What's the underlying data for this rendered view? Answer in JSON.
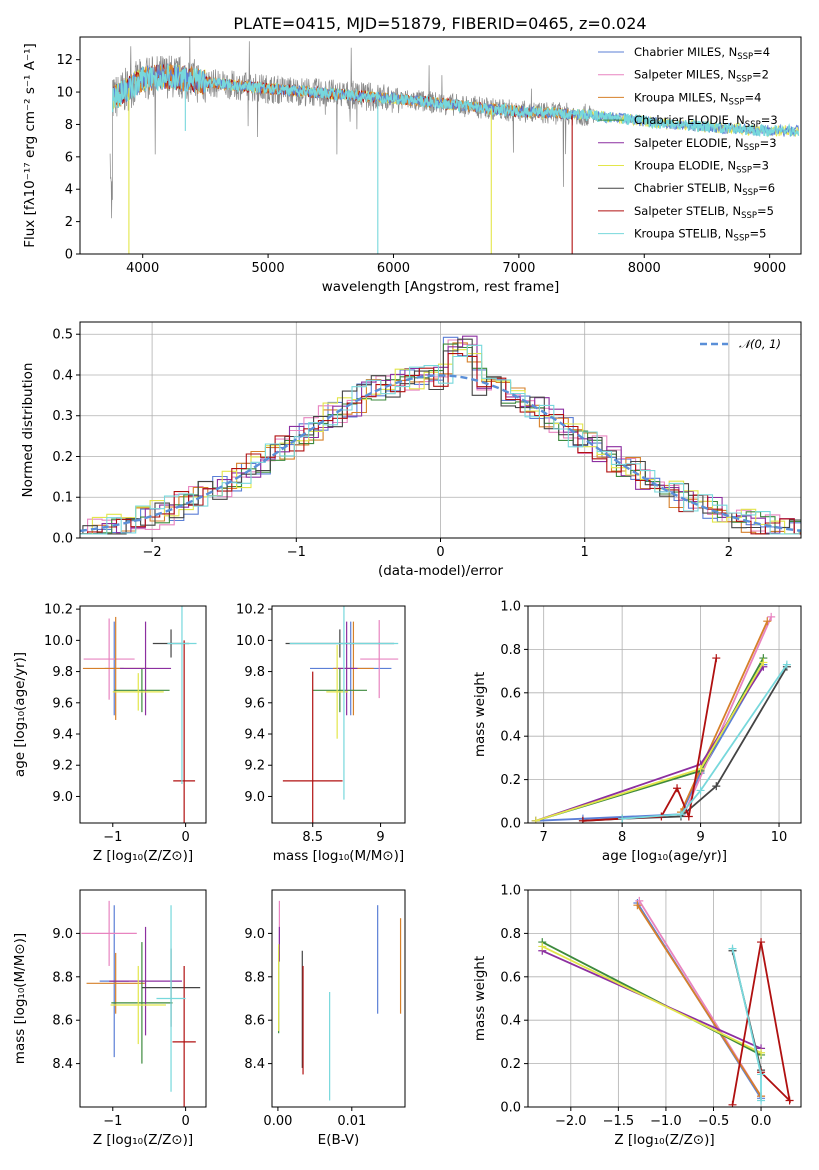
{
  "figure": {
    "title": "PLATE=0415, MJD=51879, FIBERID=0465, z=0.024"
  },
  "colors": {
    "Chabrier MILES": "#5b7fd6",
    "Salpeter MILES": "#e884c0",
    "Kroupa MILES": "#d6802a",
    "Chabrier ELODIE": "#3d8a3d",
    "Salpeter ELODIE": "#8c2fa0",
    "Kroupa ELODIE": "#e3e64a",
    "Chabrier STELIB": "#444444",
    "Salpeter STELIB": "#b01010",
    "Kroupa STELIB": "#77d8dc",
    "data": "#888888",
    "normal": "#5a8fd8"
  },
  "chart_data": [
    {
      "id": "spectrum",
      "type": "line",
      "xlabel": "wavelength [Angstrom, rest frame]",
      "ylabel": "Flux [fλ10⁻¹⁷ erg cm⁻² s⁻¹ A⁻¹]",
      "xlim": [
        3500,
        9250
      ],
      "ylim": [
        0,
        13.4
      ],
      "xticks": [
        4000,
        5000,
        6000,
        7000,
        8000,
        9000
      ],
      "yticks": [
        0,
        2,
        4,
        6,
        8,
        10,
        12
      ],
      "legend_position": "top-right",
      "legend": [
        {
          "name": "Chabrier MILES",
          "nssp": "4"
        },
        {
          "name": "Salpeter MILES",
          "nssp": "2"
        },
        {
          "name": "Kroupa MILES",
          "nssp": "4"
        },
        {
          "name": "Chabrier ELODIE",
          "nssp": "3"
        },
        {
          "name": "Salpeter ELODIE",
          "nssp": "3"
        },
        {
          "name": "Kroupa ELODIE",
          "nssp": "3"
        },
        {
          "name": "Chabrier STELIB",
          "nssp": "6"
        },
        {
          "name": "Salpeter STELIB",
          "nssp": "5"
        },
        {
          "name": "Kroupa STELIB",
          "nssp": "5"
        }
      ],
      "continuum": [
        [
          3750,
          9.5
        ],
        [
          3900,
          10.3
        ],
        [
          4000,
          10.8
        ],
        [
          4200,
          11.0
        ],
        [
          4500,
          10.6
        ],
        [
          5000,
          10.2
        ],
        [
          5500,
          9.9
        ],
        [
          6000,
          9.6
        ],
        [
          6500,
          9.2
        ],
        [
          7000,
          8.8
        ],
        [
          7500,
          8.6
        ],
        [
          7900,
          8.3
        ],
        [
          8200,
          8.0
        ],
        [
          8600,
          7.8
        ],
        [
          9000,
          7.6
        ],
        [
          9200,
          7.6
        ]
      ]
    },
    {
      "id": "residuals",
      "type": "line",
      "xlabel": "(data-model)/error",
      "ylabel": "Normed distribution",
      "xlim": [
        -2.5,
        2.5
      ],
      "ylim": [
        0,
        0.53
      ],
      "xticks": [
        -2,
        -1,
        0,
        1,
        2
      ],
      "yticks": [
        0.0,
        0.1,
        0.2,
        0.3,
        0.4,
        0.5
      ],
      "legend": "𝒩(0, 1)",
      "grid": true
    },
    {
      "id": "age_vs_Z",
      "type": "scatter",
      "xlabel": "Z [log₁₀(Z/Z⊙)]",
      "ylabel": "age  [log₁₀(age/yr)]",
      "xlim": [
        -1.45,
        0.28
      ],
      "ylim": [
        8.83,
        10.22
      ],
      "xticks": [
        -1,
        0
      ],
      "yticks": [
        9.0,
        9.2,
        9.4,
        9.6,
        9.8,
        10.0,
        10.2
      ],
      "points": [
        {
          "model": "Chabrier MILES",
          "x": -0.98,
          "y": 9.82,
          "xerr": 0.13,
          "yerr": 0.3
        },
        {
          "model": "Salpeter MILES",
          "x": -1.05,
          "y": 9.88,
          "xerr": 0.35,
          "yerr": 0.26
        },
        {
          "model": "Kroupa MILES",
          "x": -0.96,
          "y": 9.82,
          "xerr": 0.45,
          "yerr": 0.33
        },
        {
          "model": "Chabrier ELODIE",
          "x": -0.6,
          "y": 9.68,
          "xerr": 0.38,
          "yerr": 0.14
        },
        {
          "model": "Salpeter ELODIE",
          "x": -0.55,
          "y": 9.82,
          "xerr": 0.35,
          "yerr": 0.3
        },
        {
          "model": "Kroupa ELODIE",
          "x": -0.65,
          "y": 9.67,
          "xerr": 0.35,
          "yerr": 0.12
        },
        {
          "model": "Chabrier STELIB",
          "x": -0.2,
          "y": 9.98,
          "xerr": 0.25,
          "yerr": 0.09
        },
        {
          "model": "Salpeter STELIB",
          "x": -0.02,
          "y": 9.1,
          "xerr": 0.15,
          "yerr": 0.9
        },
        {
          "model": "Kroupa STELIB",
          "x": -0.05,
          "y": 9.98,
          "xerr": 0.2,
          "yerr": 0.9
        }
      ]
    },
    {
      "id": "age_vs_mass",
      "type": "scatter",
      "xlabel": "mass [log₁₀(M/M⊙)]",
      "ylabel": "",
      "xlim": [
        8.2,
        9.18
      ],
      "ylim": [
        8.83,
        10.22
      ],
      "xticks": [
        8.5,
        9.0
      ],
      "yticks": [
        9.0,
        9.2,
        9.4,
        9.6,
        9.8,
        10.0,
        10.2
      ],
      "points": [
        {
          "model": "Chabrier MILES",
          "x": 8.78,
          "y": 9.82,
          "xerr": 0.3,
          "yerr": 0.3
        },
        {
          "model": "Salpeter MILES",
          "x": 8.99,
          "y": 9.88,
          "xerr": 0.14,
          "yerr": 0.25
        },
        {
          "model": "Kroupa MILES",
          "x": 8.8,
          "y": 9.82,
          "xerr": 0.15,
          "yerr": 0.3
        },
        {
          "model": "Chabrier ELODIE",
          "x": 8.7,
          "y": 9.68,
          "xerr": 0.2,
          "yerr": 0.14
        },
        {
          "model": "Salpeter ELODIE",
          "x": 8.75,
          "y": 9.82,
          "xerr": 0.08,
          "yerr": 0.3
        },
        {
          "model": "Kroupa ELODIE",
          "x": 8.68,
          "y": 9.67,
          "xerr": 0.08,
          "yerr": 0.3
        },
        {
          "model": "Chabrier STELIB",
          "x": 8.7,
          "y": 9.98,
          "xerr": 0.4,
          "yerr": 0.09
        },
        {
          "model": "Salpeter STELIB",
          "x": 8.5,
          "y": 9.1,
          "xerr": 0.22,
          "yerr": 0.7
        },
        {
          "model": "Kroupa STELIB",
          "x": 8.73,
          "y": 9.98,
          "xerr": 0.4,
          "yerr": 1.0
        }
      ]
    },
    {
      "id": "massweight_vs_age",
      "type": "line",
      "xlabel": "age  [log₁₀(age/yr)]",
      "ylabel": "mass weight",
      "xlim": [
        6.8,
        10.28
      ],
      "ylim": [
        0,
        1.0
      ],
      "xticks": [
        7,
        8,
        9,
        10
      ],
      "yticks": [
        0.0,
        0.2,
        0.4,
        0.6,
        0.8,
        1.0
      ],
      "grid": true,
      "series": [
        {
          "model": "Chabrier MILES",
          "x": [
            6.9,
            7.5,
            8.75,
            9.0,
            9.8
          ],
          "y": [
            0.01,
            0.02,
            0.04,
            0.23,
            0.73
          ]
        },
        {
          "model": "Salpeter MILES",
          "x": [
            8.8,
            9.9
          ],
          "y": [
            0.05,
            0.95
          ]
        },
        {
          "model": "Kroupa MILES",
          "x": [
            8.75,
            9.85
          ],
          "y": [
            0.05,
            0.93
          ]
        },
        {
          "model": "Chabrier ELODIE",
          "x": [
            6.9,
            9.0,
            9.8
          ],
          "y": [
            0.01,
            0.24,
            0.76
          ]
        },
        {
          "model": "Salpeter ELODIE",
          "x": [
            6.9,
            9.0,
            9.8
          ],
          "y": [
            0.01,
            0.27,
            0.72
          ]
        },
        {
          "model": "Kroupa ELODIE",
          "x": [
            6.9,
            9.0,
            9.8
          ],
          "y": [
            0.01,
            0.25,
            0.74
          ]
        },
        {
          "model": "Chabrier STELIB",
          "x": [
            7.5,
            8.0,
            8.75,
            9.2,
            10.1
          ],
          "y": [
            0.01,
            0.02,
            0.03,
            0.17,
            0.72
          ]
        },
        {
          "model": "Salpeter STELIB",
          "x": [
            7.5,
            8.5,
            8.7,
            8.85,
            9.2
          ],
          "y": [
            0.01,
            0.03,
            0.16,
            0.03,
            0.76
          ]
        },
        {
          "model": "Kroupa STELIB",
          "x": [
            8.0,
            8.75,
            9.0,
            10.1
          ],
          "y": [
            0.02,
            0.04,
            0.15,
            0.73
          ]
        }
      ]
    },
    {
      "id": "mass_vs_Z",
      "type": "scatter",
      "xlabel": "Z [log₁₀(Z/Z⊙)]",
      "ylabel": "mass [log₁₀(M/M⊙)]",
      "xlim": [
        -1.45,
        0.28
      ],
      "ylim": [
        8.2,
        9.2
      ],
      "xticks": [
        -1,
        0
      ],
      "yticks": [
        8.4,
        8.6,
        8.8,
        9.0
      ],
      "points": [
        {
          "model": "Chabrier MILES",
          "x": -0.98,
          "y": 8.78,
          "xerr": 0.2,
          "yerr": 0.35
        },
        {
          "model": "Salpeter MILES",
          "x": -1.05,
          "y": 9.0,
          "xerr": 0.38,
          "yerr": 0.15
        },
        {
          "model": "Kroupa MILES",
          "x": -0.96,
          "y": 8.77,
          "xerr": 0.4,
          "yerr": 0.14
        },
        {
          "model": "Chabrier ELODIE",
          "x": -0.6,
          "y": 8.68,
          "xerr": 0.42,
          "yerr": 0.28
        },
        {
          "model": "Salpeter ELODIE",
          "x": -0.55,
          "y": 8.78,
          "xerr": 0.5,
          "yerr": 0.25
        },
        {
          "model": "Kroupa ELODIE",
          "x": -0.65,
          "y": 8.67,
          "xerr": 0.38,
          "yerr": 0.18
        },
        {
          "model": "Chabrier STELIB",
          "x": -0.2,
          "y": 8.75,
          "xerr": 0.4,
          "yerr": 0.18
        },
        {
          "model": "Salpeter STELIB",
          "x": -0.02,
          "y": 8.5,
          "xerr": 0.16,
          "yerr": 0.35
        },
        {
          "model": "Kroupa STELIB",
          "x": -0.2,
          "y": 8.7,
          "xerr": 0.2,
          "yerr": 0.43
        }
      ]
    },
    {
      "id": "mass_vs_ebv",
      "type": "scatter",
      "xlabel": "E(B-V)",
      "ylabel": "",
      "xlim": [
        -0.0008,
        0.0172
      ],
      "ylim": [
        8.2,
        9.2
      ],
      "xticks": [
        0.0,
        0.01
      ],
      "xtick_labels": [
        "0.00",
        "0.01"
      ],
      "yticks": [
        8.4,
        8.6,
        8.8,
        9.0
      ],
      "points": [
        {
          "model": "Chabrier MILES",
          "x": 0.0135,
          "y": 8.88,
          "yerr": 0.25
        },
        {
          "model": "Salpeter MILES",
          "x": 0.0002,
          "y": 9.03,
          "yerr": 0.12
        },
        {
          "model": "Kroupa MILES",
          "x": 0.0166,
          "y": 8.85,
          "yerr": 0.22
        },
        {
          "model": "Chabrier ELODIE",
          "x": 0.0001,
          "y": 8.74,
          "yerr": 0.2
        },
        {
          "model": "Salpeter ELODIE",
          "x": 0.0002,
          "y": 8.95,
          "yerr": 0.08
        },
        {
          "model": "Kroupa ELODIE",
          "x": 0.0001,
          "y": 8.75,
          "yerr": 0.2
        },
        {
          "model": "Chabrier STELIB",
          "x": 0.0033,
          "y": 8.65,
          "yerr": 0.27
        },
        {
          "model": "Salpeter STELIB",
          "x": 0.0034,
          "y": 8.6,
          "yerr": 0.25
        },
        {
          "model": "Kroupa STELIB",
          "x": 0.007,
          "y": 8.48,
          "yerr": 0.25
        }
      ]
    },
    {
      "id": "massweight_vs_Z",
      "type": "line",
      "xlabel": "Z [log₁₀(Z/Z⊙)]",
      "ylabel": "mass weight",
      "xlim": [
        -2.45,
        0.42
      ],
      "ylim": [
        0,
        1.0
      ],
      "xticks": [
        -2.0,
        -1.5,
        -1.0,
        -0.5,
        0.0
      ],
      "yticks": [
        0.0,
        0.2,
        0.4,
        0.6,
        0.8,
        1.0
      ],
      "grid": true,
      "series": [
        {
          "model": "Chabrier MILES",
          "x": [
            -1.3,
            0.0
          ],
          "y": [
            0.94,
            0.04
          ]
        },
        {
          "model": "Salpeter MILES",
          "x": [
            -1.28,
            0.0
          ],
          "y": [
            0.95,
            0.05
          ]
        },
        {
          "model": "Kroupa MILES",
          "x": [
            -1.3,
            0.0
          ],
          "y": [
            0.93,
            0.05
          ]
        },
        {
          "model": "Chabrier ELODIE",
          "x": [
            -2.3,
            0.0
          ],
          "y": [
            0.76,
            0.24
          ]
        },
        {
          "model": "Salpeter ELODIE",
          "x": [
            -2.3,
            0.0
          ],
          "y": [
            0.72,
            0.27
          ]
        },
        {
          "model": "Kroupa ELODIE",
          "x": [
            -2.3,
            0.0
          ],
          "y": [
            0.74,
            0.25
          ]
        },
        {
          "model": "Chabrier STELIB",
          "x": [
            -0.3,
            0.0
          ],
          "y": [
            0.72,
            0.17
          ]
        },
        {
          "model": "Salpeter STELIB",
          "x": [
            -0.3,
            0.0,
            0.3,
            0.0
          ],
          "y": [
            0.01,
            0.76,
            0.03,
            0.16
          ]
        },
        {
          "model": "Kroupa STELIB",
          "x": [
            -0.3,
            0.0,
            0.0
          ],
          "y": [
            0.73,
            0.15,
            0.03
          ]
        }
      ]
    }
  ]
}
